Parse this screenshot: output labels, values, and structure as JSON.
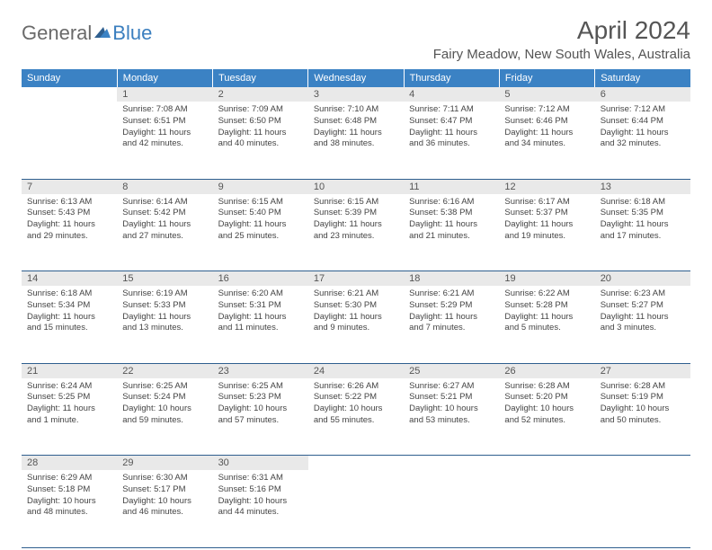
{
  "brand": {
    "text1": "General",
    "text2": "Blue"
  },
  "title": "April 2024",
  "location": "Fairy Meadow, New South Wales, Australia",
  "colors": {
    "header_bg": "#3b82c4",
    "header_text": "#ffffff",
    "daynum_bg": "#e9e9e9",
    "text": "#555555",
    "row_border": "#2f5f8f",
    "logo_gray": "#6a6a6a",
    "logo_blue": "#3b7fbf"
  },
  "weekdays": [
    "Sunday",
    "Monday",
    "Tuesday",
    "Wednesday",
    "Thursday",
    "Friday",
    "Saturday"
  ],
  "weeks": [
    [
      {
        "day": "",
        "lines": []
      },
      {
        "day": "1",
        "lines": [
          "Sunrise: 7:08 AM",
          "Sunset: 6:51 PM",
          "Daylight: 11 hours and 42 minutes."
        ]
      },
      {
        "day": "2",
        "lines": [
          "Sunrise: 7:09 AM",
          "Sunset: 6:50 PM",
          "Daylight: 11 hours and 40 minutes."
        ]
      },
      {
        "day": "3",
        "lines": [
          "Sunrise: 7:10 AM",
          "Sunset: 6:48 PM",
          "Daylight: 11 hours and 38 minutes."
        ]
      },
      {
        "day": "4",
        "lines": [
          "Sunrise: 7:11 AM",
          "Sunset: 6:47 PM",
          "Daylight: 11 hours and 36 minutes."
        ]
      },
      {
        "day": "5",
        "lines": [
          "Sunrise: 7:12 AM",
          "Sunset: 6:46 PM",
          "Daylight: 11 hours and 34 minutes."
        ]
      },
      {
        "day": "6",
        "lines": [
          "Sunrise: 7:12 AM",
          "Sunset: 6:44 PM",
          "Daylight: 11 hours and 32 minutes."
        ]
      }
    ],
    [
      {
        "day": "7",
        "lines": [
          "Sunrise: 6:13 AM",
          "Sunset: 5:43 PM",
          "Daylight: 11 hours and 29 minutes."
        ]
      },
      {
        "day": "8",
        "lines": [
          "Sunrise: 6:14 AM",
          "Sunset: 5:42 PM",
          "Daylight: 11 hours and 27 minutes."
        ]
      },
      {
        "day": "9",
        "lines": [
          "Sunrise: 6:15 AM",
          "Sunset: 5:40 PM",
          "Daylight: 11 hours and 25 minutes."
        ]
      },
      {
        "day": "10",
        "lines": [
          "Sunrise: 6:15 AM",
          "Sunset: 5:39 PM",
          "Daylight: 11 hours and 23 minutes."
        ]
      },
      {
        "day": "11",
        "lines": [
          "Sunrise: 6:16 AM",
          "Sunset: 5:38 PM",
          "Daylight: 11 hours and 21 minutes."
        ]
      },
      {
        "day": "12",
        "lines": [
          "Sunrise: 6:17 AM",
          "Sunset: 5:37 PM",
          "Daylight: 11 hours and 19 minutes."
        ]
      },
      {
        "day": "13",
        "lines": [
          "Sunrise: 6:18 AM",
          "Sunset: 5:35 PM",
          "Daylight: 11 hours and 17 minutes."
        ]
      }
    ],
    [
      {
        "day": "14",
        "lines": [
          "Sunrise: 6:18 AM",
          "Sunset: 5:34 PM",
          "Daylight: 11 hours and 15 minutes."
        ]
      },
      {
        "day": "15",
        "lines": [
          "Sunrise: 6:19 AM",
          "Sunset: 5:33 PM",
          "Daylight: 11 hours and 13 minutes."
        ]
      },
      {
        "day": "16",
        "lines": [
          "Sunrise: 6:20 AM",
          "Sunset: 5:31 PM",
          "Daylight: 11 hours and 11 minutes."
        ]
      },
      {
        "day": "17",
        "lines": [
          "Sunrise: 6:21 AM",
          "Sunset: 5:30 PM",
          "Daylight: 11 hours and 9 minutes."
        ]
      },
      {
        "day": "18",
        "lines": [
          "Sunrise: 6:21 AM",
          "Sunset: 5:29 PM",
          "Daylight: 11 hours and 7 minutes."
        ]
      },
      {
        "day": "19",
        "lines": [
          "Sunrise: 6:22 AM",
          "Sunset: 5:28 PM",
          "Daylight: 11 hours and 5 minutes."
        ]
      },
      {
        "day": "20",
        "lines": [
          "Sunrise: 6:23 AM",
          "Sunset: 5:27 PM",
          "Daylight: 11 hours and 3 minutes."
        ]
      }
    ],
    [
      {
        "day": "21",
        "lines": [
          "Sunrise: 6:24 AM",
          "Sunset: 5:25 PM",
          "Daylight: 11 hours and 1 minute."
        ]
      },
      {
        "day": "22",
        "lines": [
          "Sunrise: 6:25 AM",
          "Sunset: 5:24 PM",
          "Daylight: 10 hours and 59 minutes."
        ]
      },
      {
        "day": "23",
        "lines": [
          "Sunrise: 6:25 AM",
          "Sunset: 5:23 PM",
          "Daylight: 10 hours and 57 minutes."
        ]
      },
      {
        "day": "24",
        "lines": [
          "Sunrise: 6:26 AM",
          "Sunset: 5:22 PM",
          "Daylight: 10 hours and 55 minutes."
        ]
      },
      {
        "day": "25",
        "lines": [
          "Sunrise: 6:27 AM",
          "Sunset: 5:21 PM",
          "Daylight: 10 hours and 53 minutes."
        ]
      },
      {
        "day": "26",
        "lines": [
          "Sunrise: 6:28 AM",
          "Sunset: 5:20 PM",
          "Daylight: 10 hours and 52 minutes."
        ]
      },
      {
        "day": "27",
        "lines": [
          "Sunrise: 6:28 AM",
          "Sunset: 5:19 PM",
          "Daylight: 10 hours and 50 minutes."
        ]
      }
    ],
    [
      {
        "day": "28",
        "lines": [
          "Sunrise: 6:29 AM",
          "Sunset: 5:18 PM",
          "Daylight: 10 hours and 48 minutes."
        ]
      },
      {
        "day": "29",
        "lines": [
          "Sunrise: 6:30 AM",
          "Sunset: 5:17 PM",
          "Daylight: 10 hours and 46 minutes."
        ]
      },
      {
        "day": "30",
        "lines": [
          "Sunrise: 6:31 AM",
          "Sunset: 5:16 PM",
          "Daylight: 10 hours and 44 minutes."
        ]
      },
      {
        "day": "",
        "lines": []
      },
      {
        "day": "",
        "lines": []
      },
      {
        "day": "",
        "lines": []
      },
      {
        "day": "",
        "lines": []
      }
    ]
  ]
}
